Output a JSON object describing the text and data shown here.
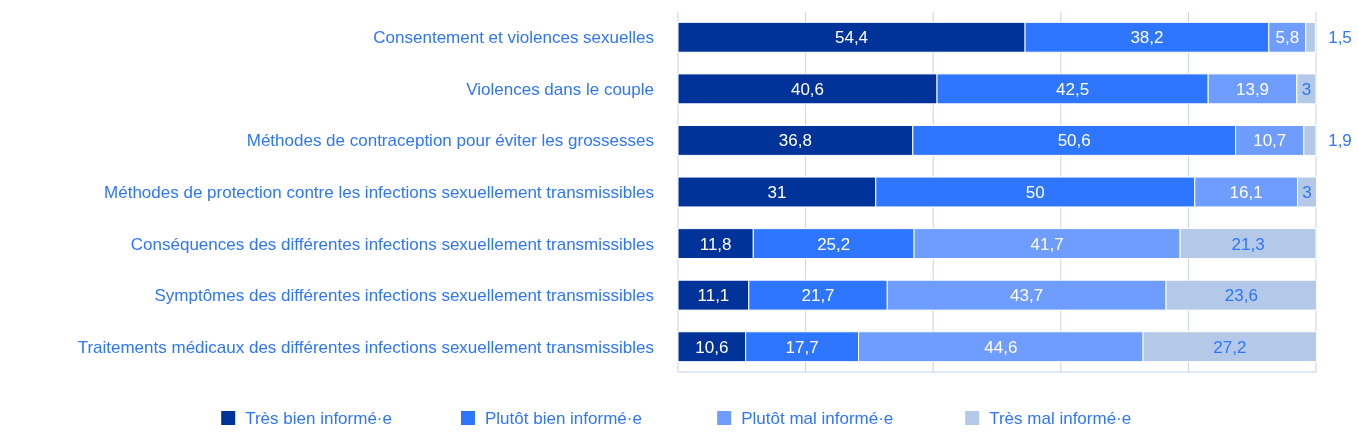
{
  "chart_data": {
    "type": "bar",
    "orientation": "horizontal",
    "stacked": true,
    "categories": [
      "Consentement et violences sexuelles",
      "Violences dans le couple",
      "Méthodes de contraception pour éviter les grossesses",
      "Méthodes de protection contre les infections sexuellement transmissibles",
      "Conséquences des différentes infections sexuellement transmissibles",
      "Symptômes des différentes infections sexuellement transmissibles",
      "Traitements médicaux des différentes infections sexuellement transmissibles"
    ],
    "series": [
      {
        "name": "Très bien informé·e",
        "color": "#003399",
        "values": [
          54.4,
          40.6,
          36.8,
          31,
          11.8,
          11.1,
          10.6
        ],
        "value_labels": [
          "54,4",
          "40,6",
          "36,8",
          "31",
          "11,8",
          "11,1",
          "10,6"
        ]
      },
      {
        "name": "Plutôt bien informé·e",
        "color": "#2e75ff",
        "values": [
          38.2,
          42.5,
          50.6,
          50,
          25.2,
          21.7,
          17.7
        ],
        "value_labels": [
          "38,2",
          "42,5",
          "50,6",
          "50",
          "25,2",
          "21,7",
          "17,7"
        ]
      },
      {
        "name": "Plutôt mal informé·e",
        "color": "#6f9dff",
        "values": [
          5.8,
          13.9,
          10.7,
          16.1,
          41.7,
          43.7,
          44.6
        ],
        "value_labels": [
          "5,8",
          "13,9",
          "10,7",
          "16,1",
          "41,7",
          "43,7",
          "44,6"
        ]
      },
      {
        "name": "Très mal informé·e",
        "color": "#b4c9e8",
        "values": [
          1.5,
          3,
          1.9,
          3,
          21.3,
          23.6,
          27.2
        ],
        "value_labels": [
          "1,5",
          "3",
          "1,9",
          "3",
          "21,3",
          "23,6",
          "27,2"
        ]
      }
    ],
    "xlim": [
      0,
      100
    ],
    "xticks": [
      {
        "value": 0,
        "label": null
      },
      {
        "value": 20,
        "label": null
      },
      {
        "value": 40,
        "label": null
      },
      {
        "value": 60,
        "label": null
      },
      {
        "value": 80,
        "label": null
      },
      {
        "value": 100,
        "label": null
      }
    ],
    "tick_labels": "y",
    "grid": "x",
    "legend": "bottom"
  }
}
